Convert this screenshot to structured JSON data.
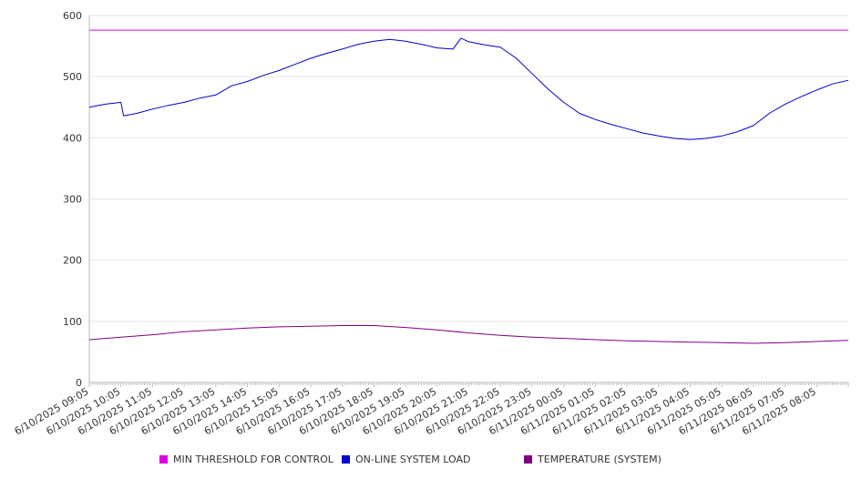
{
  "chart_data": {
    "type": "line",
    "ylim": [
      0,
      600
    ],
    "y_ticks": [
      "0",
      "100",
      "200",
      "300",
      "400",
      "500",
      "600"
    ],
    "x_tick_labels": [
      "6/10/2025 09:05",
      "6/10/2025 10:05",
      "6/10/2025 11:05",
      "6/10/2025 12:05",
      "6/10/2025 13:05",
      "6/10/2025 14:05",
      "6/10/2025 15:05",
      "6/10/2025 16:05",
      "6/10/2025 17:05",
      "6/10/2025 18:05",
      "6/10/2025 19:05",
      "6/10/2025 20:05",
      "6/10/2025 21:05",
      "6/10/2025 22:05",
      "6/10/2025 23:05",
      "6/11/2025 00:05",
      "6/11/2025 01:05",
      "6/11/2025 02:05",
      "6/11/2025 03:05",
      "6/11/2025 04:05",
      "6/11/2025 05:05",
      "6/11/2025 06:05",
      "6/11/2025 07:05",
      "6/11/2025 08:05"
    ],
    "x_range": [
      "6/10/2025 09:05",
      "6/11/2025 09:05"
    ],
    "grid": "horizontal",
    "legend_position": "bottom",
    "series": [
      {
        "name": "MIN THRESHOLD FOR CONTROL",
        "color": "#e000e0",
        "times": [
          "6/10/2025 09:05",
          "6/11/2025 09:05"
        ],
        "values": [
          576,
          576
        ]
      },
      {
        "name": "ON-LINE SYSTEM LOAD",
        "color": "#0000cc",
        "times": [
          "6/10/2025 09:05",
          "6/10/2025 09:35",
          "6/10/2025 10:05",
          "6/10/2025 10:10",
          "6/10/2025 10:35",
          "6/10/2025 11:05",
          "6/10/2025 11:35",
          "6/10/2025 12:05",
          "6/10/2025 12:35",
          "6/10/2025 13:05",
          "6/10/2025 13:35",
          "6/10/2025 14:05",
          "6/10/2025 14:35",
          "6/10/2025 15:05",
          "6/10/2025 15:35",
          "6/10/2025 16:05",
          "6/10/2025 16:35",
          "6/10/2025 17:05",
          "6/10/2025 17:35",
          "6/10/2025 18:05",
          "6/10/2025 18:35",
          "6/10/2025 19:05",
          "6/10/2025 19:35",
          "6/10/2025 20:05",
          "6/10/2025 20:35",
          "6/10/2025 20:50",
          "6/10/2025 21:05",
          "6/10/2025 21:35",
          "6/10/2025 22:05",
          "6/10/2025 22:35",
          "6/10/2025 23:05",
          "6/10/2025 23:35",
          "6/11/2025 00:05",
          "6/11/2025 00:35",
          "6/11/2025 01:05",
          "6/11/2025 01:35",
          "6/11/2025 02:05",
          "6/11/2025 02:35",
          "6/11/2025 03:05",
          "6/11/2025 03:35",
          "6/11/2025 04:05",
          "6/11/2025 04:35",
          "6/11/2025 05:05",
          "6/11/2025 05:35",
          "6/11/2025 06:05",
          "6/11/2025 06:35",
          "6/11/2025 07:05",
          "6/11/2025 07:35",
          "6/11/2025 08:05",
          "6/11/2025 08:35",
          "6/11/2025 09:05"
        ],
        "values": [
          450,
          455,
          458,
          436,
          440,
          447,
          453,
          458,
          465,
          470,
          485,
          492,
          502,
          510,
          520,
          530,
          538,
          545,
          553,
          558,
          561,
          558,
          553,
          547,
          545,
          563,
          557,
          552,
          548,
          530,
          505,
          480,
          458,
          440,
          430,
          422,
          415,
          408,
          403,
          399,
          397,
          399,
          403,
          410,
          420,
          440,
          455,
          467,
          478,
          488,
          494
        ]
      },
      {
        "name": "TEMPERATURE (SYSTEM)",
        "color": "#800080",
        "times": [
          "6/10/2025 09:05",
          "6/10/2025 10:05",
          "6/10/2025 11:05",
          "6/10/2025 12:05",
          "6/10/2025 13:05",
          "6/10/2025 14:05",
          "6/10/2025 15:05",
          "6/10/2025 16:05",
          "6/10/2025 17:05",
          "6/10/2025 18:05",
          "6/10/2025 19:05",
          "6/10/2025 20:05",
          "6/10/2025 21:05",
          "6/10/2025 22:05",
          "6/10/2025 23:05",
          "6/11/2025 00:05",
          "6/11/2025 01:05",
          "6/11/2025 02:05",
          "6/11/2025 03:05",
          "6/11/2025 04:05",
          "6/11/2025 05:05",
          "6/11/2025 06:05",
          "6/11/2025 07:05",
          "6/11/2025 08:05",
          "6/11/2025 09:05"
        ],
        "values": [
          70,
          74,
          78,
          83,
          86,
          89,
          91,
          92,
          93,
          93,
          90,
          86,
          81,
          77,
          74,
          72,
          70,
          68,
          67,
          66,
          65,
          64,
          65,
          67,
          69
        ]
      }
    ]
  }
}
